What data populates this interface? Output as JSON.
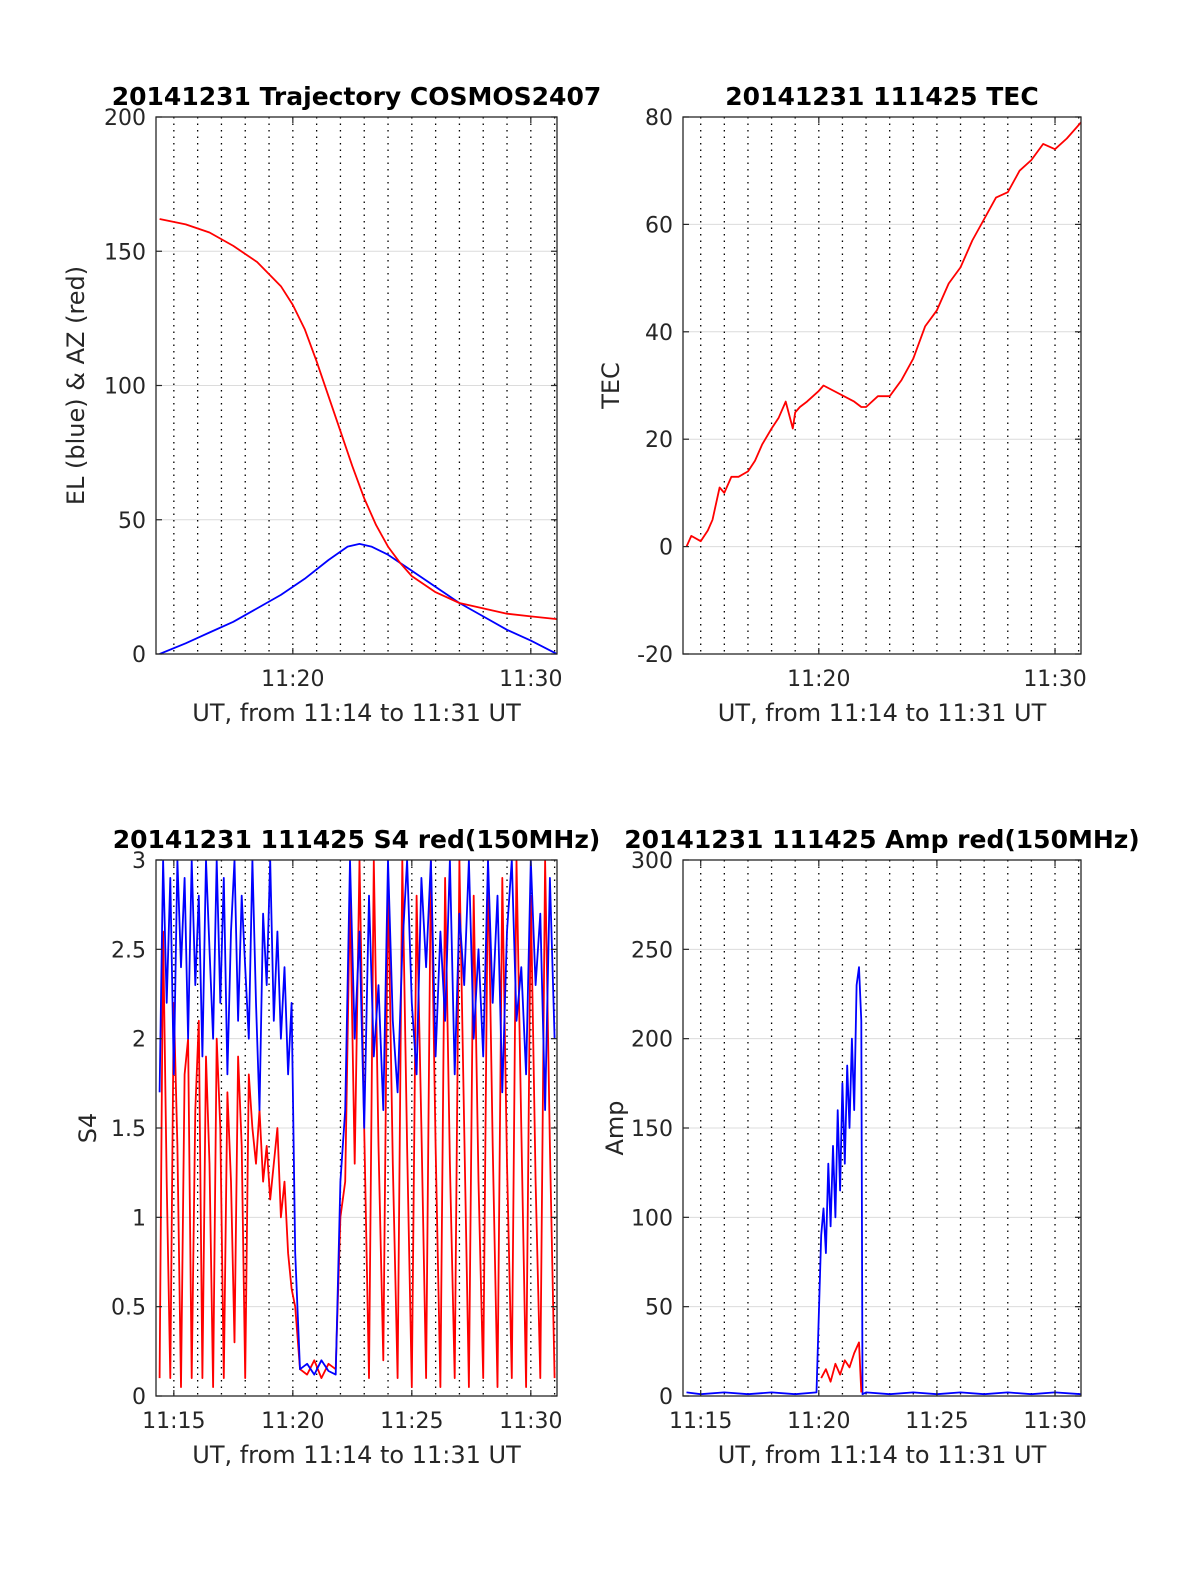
{
  "figure": {
    "colors": {
      "el": "#0000ff",
      "az": "#ff0000",
      "tec": "#ff0000",
      "s4_red": "#ff0000",
      "s4_blue": "#0000ff",
      "amp_red": "#ff0000",
      "amp_blue": "#0000ff",
      "axis": "#262626",
      "grid_solid": "#dcdcdc",
      "grid_dotted": "#000000"
    }
  },
  "chart_data": [
    {
      "id": "trajectory",
      "type": "line",
      "title": "20141231 Trajectory COSMOS2407",
      "xlabel": "UT, from 11:14 to 11:31 UT",
      "ylabel": "EL (blue) & AZ (red)",
      "xlim_minutes": [
        14.25,
        31.1
      ],
      "ylim": [
        0,
        200
      ],
      "xticks": [
        {
          "at": 20,
          "label": "11:20"
        },
        {
          "at": 30,
          "label": "11:30"
        }
      ],
      "yticks": [
        0,
        50,
        100,
        150,
        200
      ],
      "grid": "on",
      "minor_grid": "dotted, 1 minute",
      "series": [
        {
          "key": "el",
          "color": "#0000ff",
          "x": [
            14.4,
            15.5,
            16.5,
            17.5,
            18.5,
            19.5,
            20.5,
            21.5,
            22.3,
            22.8,
            23.3,
            24.0,
            25.0,
            26.0,
            27.0,
            28.0,
            29.0,
            30.0,
            31.1
          ],
          "y": [
            0,
            4,
            8,
            12,
            17,
            22,
            28,
            35,
            40,
            41,
            40,
            37,
            31,
            25,
            19,
            14,
            9,
            5,
            0
          ]
        },
        {
          "key": "az",
          "color": "#ff0000",
          "x": [
            14.4,
            15.5,
            16.5,
            17.5,
            18.5,
            19.5,
            20.0,
            20.5,
            21.0,
            21.5,
            22.0,
            22.5,
            23.0,
            23.5,
            24.0,
            24.5,
            25.0,
            26.0,
            27.0,
            28.0,
            29.0,
            30.0,
            31.1
          ],
          "y": [
            162,
            160,
            157,
            152,
            146,
            137,
            130,
            121,
            109,
            96,
            83,
            70,
            58,
            48,
            40,
            34,
            29,
            23,
            19,
            17,
            15,
            14,
            13
          ]
        }
      ]
    },
    {
      "id": "tec",
      "type": "line",
      "title": "20141231 111425 TEC",
      "xlabel": "UT, from 11:14 to 11:31 UT",
      "ylabel": "TEC",
      "xlim_minutes": [
        14.25,
        31.1
      ],
      "ylim": [
        -20,
        80
      ],
      "xticks": [
        {
          "at": 20,
          "label": "11:20"
        },
        {
          "at": 30,
          "label": "11:30"
        }
      ],
      "yticks": [
        -20,
        0,
        20,
        40,
        60,
        80
      ],
      "grid": "on",
      "minor_grid": "dotted, 1 minute",
      "series": [
        {
          "key": "tec",
          "color": "#ff0000",
          "x": [
            14.4,
            14.6,
            15.0,
            15.3,
            15.5,
            15.8,
            16.0,
            16.3,
            16.6,
            17.0,
            17.3,
            17.6,
            18.0,
            18.3,
            18.6,
            18.9,
            19.0,
            19.2,
            19.5,
            20.0,
            20.2,
            21.5,
            21.8,
            22.0,
            22.5,
            23.0,
            23.5,
            24.0,
            24.5,
            25.0,
            25.5,
            26.0,
            26.5,
            27.0,
            27.5,
            28.0,
            28.5,
            29.0,
            29.5,
            30.0,
            30.5,
            31.1
          ],
          "y": [
            0,
            2,
            1,
            3,
            5,
            11,
            10,
            13,
            13,
            14,
            16,
            19,
            22,
            24,
            27,
            22,
            25,
            26,
            27,
            29,
            30,
            27,
            26,
            26,
            28,
            28,
            31,
            35,
            41,
            44,
            49,
            52,
            57,
            61,
            65,
            66,
            70,
            72,
            75,
            74,
            76,
            79
          ]
        }
      ]
    },
    {
      "id": "s4",
      "type": "line",
      "title": "20141231 111425 S4 red(150MHz)",
      "xlabel": "UT, from 11:14 to 11:31 UT",
      "ylabel": "S4",
      "xlim_minutes": [
        14.25,
        31.1
      ],
      "ylim": [
        0,
        3
      ],
      "xticks": [
        {
          "at": 15,
          "label": "11:15"
        },
        {
          "at": 20,
          "label": "11:20"
        },
        {
          "at": 25,
          "label": "11:25"
        },
        {
          "at": 30,
          "label": "11:30"
        }
      ],
      "yticks": [
        0,
        0.5,
        1,
        1.5,
        2,
        2.5,
        3
      ],
      "grid": "on",
      "minor_grid": "dotted, 1 minute",
      "series": [
        {
          "key": "s4_red",
          "color": "#ff0000",
          "x": [
            14.4,
            14.55,
            14.7,
            14.85,
            15.0,
            15.15,
            15.3,
            15.45,
            15.6,
            15.75,
            15.9,
            16.05,
            16.2,
            16.35,
            16.5,
            16.65,
            16.8,
            16.95,
            17.1,
            17.25,
            17.4,
            17.55,
            17.7,
            17.85,
            18.0,
            18.15,
            18.3,
            18.45,
            18.6,
            18.75,
            18.9,
            19.05,
            19.2,
            19.35,
            19.5,
            19.65,
            19.8,
            19.95,
            20.1,
            20.3,
            20.6,
            20.9,
            21.2,
            21.5,
            21.8,
            22.0,
            22.2,
            22.4,
            22.6,
            22.8,
            23.0,
            23.2,
            23.4,
            23.6,
            23.8,
            24.0,
            24.2,
            24.4,
            24.6,
            24.8,
            25.0,
            25.2,
            25.4,
            25.6,
            25.8,
            26.0,
            26.2,
            26.4,
            26.6,
            26.8,
            27.0,
            27.2,
            27.4,
            27.6,
            27.8,
            28.0,
            28.2,
            28.4,
            28.6,
            28.8,
            29.0,
            29.2,
            29.4,
            29.6,
            29.8,
            30.0,
            30.2,
            30.4,
            30.6,
            30.8,
            31.0
          ],
          "y": [
            0.1,
            2.6,
            1.2,
            0.1,
            2.2,
            1.4,
            0.05,
            1.8,
            2.0,
            0.1,
            1.6,
            2.1,
            0.1,
            1.9,
            1.3,
            0.05,
            2.0,
            1.5,
            0.1,
            1.7,
            1.2,
            0.3,
            1.9,
            1.4,
            0.1,
            1.8,
            1.5,
            1.3,
            1.6,
            1.2,
            1.4,
            1.1,
            1.3,
            1.5,
            1.0,
            1.2,
            0.8,
            0.6,
            0.5,
            0.15,
            0.12,
            0.2,
            0.1,
            0.18,
            0.15,
            1.0,
            1.2,
            2.8,
            1.3,
            3.0,
            1.5,
            0.1,
            3.0,
            1.4,
            0.2,
            2.9,
            1.3,
            0.1,
            3.0,
            1.4,
            0.05,
            2.8,
            1.5,
            0.1,
            3.0,
            1.4,
            0.05,
            2.9,
            1.3,
            0.1,
            3.0,
            1.5,
            0.05,
            2.8,
            1.2,
            0.1,
            3.0,
            1.4,
            0.05,
            2.9,
            1.3,
            0.1,
            3.0,
            1.5,
            0.05,
            2.8,
            1.2,
            0.1,
            3.0,
            1.4,
            0.1
          ]
        },
        {
          "key": "s4_blue",
          "color": "#0000ff",
          "x": [
            14.4,
            14.55,
            14.7,
            14.85,
            15.0,
            15.15,
            15.3,
            15.45,
            15.6,
            15.75,
            15.9,
            16.05,
            16.2,
            16.35,
            16.5,
            16.65,
            16.8,
            16.95,
            17.1,
            17.25,
            17.4,
            17.55,
            17.7,
            17.85,
            18.0,
            18.15,
            18.3,
            18.45,
            18.6,
            18.75,
            18.9,
            19.05,
            19.2,
            19.35,
            19.5,
            19.65,
            19.8,
            19.95,
            20.1,
            20.3,
            20.6,
            20.9,
            21.2,
            21.5,
            21.8,
            22.0,
            22.2,
            22.4,
            22.6,
            22.8,
            23.0,
            23.2,
            23.4,
            23.6,
            23.8,
            24.0,
            24.2,
            24.4,
            24.6,
            24.8,
            25.0,
            25.2,
            25.4,
            25.6,
            25.8,
            26.0,
            26.2,
            26.4,
            26.6,
            26.8,
            27.0,
            27.2,
            27.4,
            27.6,
            27.8,
            28.0,
            28.2,
            28.4,
            28.6,
            28.8,
            29.0,
            29.2,
            29.4,
            29.6,
            29.8,
            30.0,
            30.2,
            30.4,
            30.6,
            30.8,
            31.0
          ],
          "y": [
            1.7,
            3.0,
            2.2,
            2.9,
            1.8,
            3.0,
            2.4,
            2.9,
            2.0,
            3.0,
            2.3,
            2.8,
            1.9,
            3.0,
            2.5,
            2.0,
            3.0,
            2.2,
            2.9,
            1.8,
            2.6,
            3.0,
            2.1,
            2.8,
            2.4,
            2.0,
            3.0,
            2.2,
            1.6,
            2.7,
            2.3,
            3.0,
            2.1,
            2.6,
            2.0,
            2.4,
            1.8,
            2.2,
            0.8,
            0.15,
            0.18,
            0.12,
            0.2,
            0.14,
            0.12,
            1.2,
            1.6,
            3.0,
            2.0,
            2.6,
            1.5,
            2.8,
            1.9,
            2.3,
            1.6,
            3.0,
            2.1,
            1.7,
            2.5,
            3.0,
            2.2,
            1.8,
            2.9,
            2.4,
            3.0,
            1.9,
            2.6,
            2.1,
            3.0,
            1.8,
            2.7,
            2.3,
            3.0,
            2.0,
            2.5,
            1.9,
            3.0,
            2.2,
            2.8,
            1.7,
            2.6,
            3.0,
            2.1,
            2.4,
            1.8,
            3.0,
            2.3,
            2.7,
            1.6,
            2.9,
            2.0
          ]
        }
      ]
    },
    {
      "id": "amp",
      "type": "line",
      "title": "20141231 111425 Amp red(150MHz)",
      "xlabel": "UT, from 11:14 to 11:31 UT",
      "ylabel": "Amp",
      "xlim_minutes": [
        14.25,
        31.1
      ],
      "ylim": [
        0,
        300
      ],
      "xticks": [
        {
          "at": 15,
          "label": "11:15"
        },
        {
          "at": 20,
          "label": "11:20"
        },
        {
          "at": 25,
          "label": "11:25"
        },
        {
          "at": 30,
          "label": "11:30"
        }
      ],
      "yticks": [
        0,
        50,
        100,
        150,
        200,
        250,
        300
      ],
      "grid": "on",
      "minor_grid": "dotted, 1 minute",
      "series": [
        {
          "key": "amp_blue",
          "color": "#0000ff",
          "x": [
            14.4,
            15.0,
            16.0,
            17.0,
            18.0,
            19.0,
            19.9,
            20.1,
            20.2,
            20.3,
            20.4,
            20.5,
            20.6,
            20.7,
            20.8,
            20.9,
            21.0,
            21.1,
            21.2,
            21.3,
            21.4,
            21.5,
            21.6,
            21.7,
            21.8,
            21.85,
            22.0,
            23.0,
            24.0,
            25.0,
            26.0,
            27.0,
            28.0,
            29.0,
            30.0,
            31.1
          ],
          "y": [
            2,
            1,
            2,
            1,
            2,
            1,
            2,
            90,
            105,
            80,
            130,
            95,
            140,
            100,
            160,
            115,
            175,
            130,
            185,
            150,
            200,
            160,
            230,
            240,
            210,
            1,
            2,
            1,
            2,
            1,
            2,
            1,
            2,
            1,
            2,
            1
          ]
        },
        {
          "key": "amp_red",
          "color": "#ff0000",
          "x": [
            20.1,
            20.3,
            20.5,
            20.7,
            20.9,
            21.1,
            21.3,
            21.5,
            21.7,
            21.8
          ],
          "y": [
            10,
            15,
            8,
            18,
            12,
            20,
            16,
            24,
            30,
            2
          ]
        }
      ]
    }
  ]
}
